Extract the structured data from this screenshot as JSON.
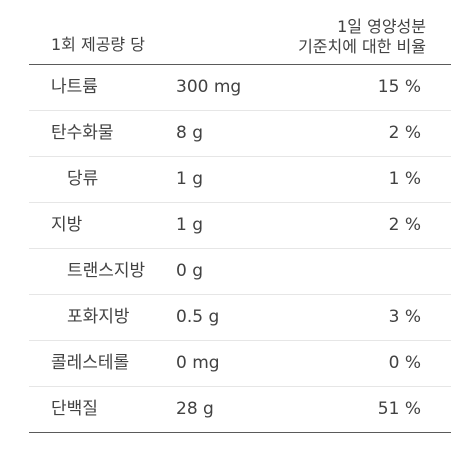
{
  "header": {
    "serving": "1회 제공량 당",
    "daily_value_line1": "1일 영양성분",
    "daily_value_line2": "기준치에 대한 비율"
  },
  "rows": [
    {
      "name": "나트륨",
      "amount": "300 mg",
      "percent": "15 %"
    },
    {
      "name": "탄수화물",
      "amount": "8 g",
      "percent": "2 %"
    },
    {
      "name": "당류",
      "amount": "1 g",
      "percent": "1 %"
    },
    {
      "name": "지방",
      "amount": "1 g",
      "percent": "2 %"
    },
    {
      "name": "트랜스지방",
      "amount": "0 g",
      "percent": ""
    },
    {
      "name": "포화지방",
      "amount": "0.5 g",
      "percent": "3 %"
    },
    {
      "name": "콜레스테롤",
      "amount": "0 mg",
      "percent": "0 %"
    },
    {
      "name": "단백질",
      "amount": "28 g",
      "percent": "51 %"
    }
  ]
}
